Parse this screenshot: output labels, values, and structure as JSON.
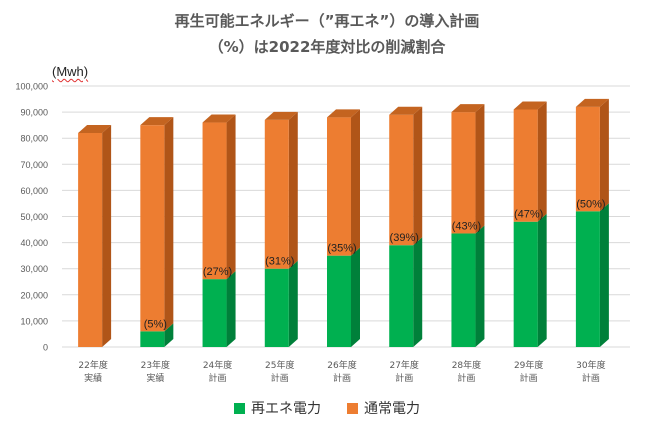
{
  "title_line1": "再生可能エネルギー（”再エネ”）の導入計画",
  "title_line2": "（%）は2022年度対比の削減割合",
  "unit_label": "(Mwh)",
  "colors": {
    "renewable": "#00b050",
    "renewable_side": "#00803a",
    "renewable_top": "#4fd07f",
    "normal": "#ed7d31",
    "normal_side": "#b05518",
    "normal_top": "#c46420",
    "grid": "#d9d9d9",
    "axis_text": "#595959"
  },
  "chart_data": {
    "type": "bar",
    "stacked": true,
    "three_d": true,
    "ylim": [
      0,
      100000
    ],
    "yticks": [
      "0",
      "10,000",
      "20,000",
      "30,000",
      "40,000",
      "50,000",
      "60,000",
      "70,000",
      "80,000",
      "90,000",
      "100,000"
    ],
    "categories": [
      [
        "22年度",
        "実績"
      ],
      [
        "23年度",
        "実績"
      ],
      [
        "24年度",
        "計画"
      ],
      [
        "25年度",
        "計画"
      ],
      [
        "26年度",
        "計画"
      ],
      [
        "27年度",
        "計画"
      ],
      [
        "28年度",
        "計画"
      ],
      [
        "29年度",
        "計画"
      ],
      [
        "30年度",
        "計画"
      ]
    ],
    "series": [
      {
        "name": "再エネ電力",
        "values": [
          0,
          6000,
          26000,
          30000,
          35000,
          39000,
          43500,
          48000,
          52000
        ]
      },
      {
        "name": "通常電力",
        "values": [
          82000,
          79000,
          60000,
          57000,
          53000,
          50000,
          46500,
          43000,
          40000
        ]
      }
    ],
    "data_labels": [
      "",
      "(5%)",
      "(27%)",
      "(31%)",
      "(35%)",
      "(39%)",
      "(43%)",
      "(47%)",
      "(50%)"
    ],
    "legend_position": "bottom",
    "grid": true
  }
}
